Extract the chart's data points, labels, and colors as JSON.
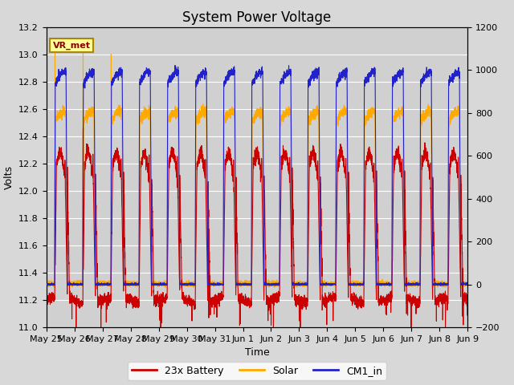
{
  "title": "System Power Voltage",
  "xlabel": "Time",
  "ylabel_left": "Volts",
  "ylabel_right": "",
  "ylim_left": [
    11.0,
    13.2
  ],
  "ylim_right": [
    -200,
    1200
  ],
  "yticks_left": [
    11.0,
    11.2,
    11.4,
    11.6,
    11.8,
    12.0,
    12.2,
    12.4,
    12.6,
    12.8,
    13.0,
    13.2
  ],
  "yticks_right": [
    -200,
    0,
    200,
    400,
    600,
    800,
    1000,
    1200
  ],
  "background_color": "#d8d8d8",
  "plot_bg_color": "#d0d0d0",
  "grid_color": "#ffffff",
  "legend_labels": [
    "23x Battery",
    "Solar",
    "CM1_in"
  ],
  "legend_colors": [
    "#cc0000",
    "#ffaa00",
    "#2222cc"
  ],
  "annotation_text": "VR_met",
  "annotation_box_color": "#ffff99",
  "annotation_box_edge": "#aa8800",
  "num_days": 16,
  "x_tick_labels": [
    "May 25",
    "May 26",
    "May 27",
    "May 28",
    "May 29",
    "May 30",
    "May 31",
    "Jun 1",
    "Jun 2",
    "Jun 3",
    "Jun 4",
    "Jun 5",
    "Jun 6",
    "Jun 7",
    "Jun 8",
    "Jun 9"
  ],
  "title_fontsize": 12,
  "label_fontsize": 9,
  "tick_fontsize": 8
}
